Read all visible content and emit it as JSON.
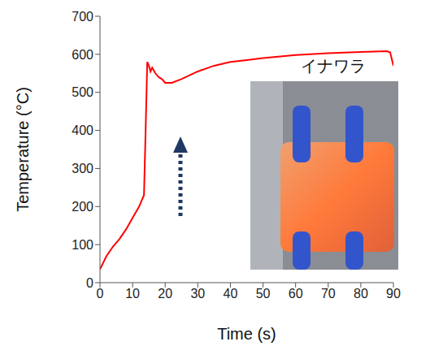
{
  "chart_data": {
    "type": "line",
    "xlabel": "Time (s)",
    "ylabel": "Temperature (°C)",
    "annotation": "イナワラ",
    "x": [
      0,
      2,
      4,
      6,
      8,
      10,
      12,
      13.5,
      14,
      14.5,
      15,
      15.5,
      16,
      17,
      18,
      19,
      20,
      22,
      25,
      30,
      35,
      40,
      45,
      50,
      60,
      70,
      80,
      88,
      89,
      90
    ],
    "values": [
      35,
      70,
      95,
      115,
      140,
      170,
      200,
      230,
      400,
      580,
      570,
      555,
      565,
      550,
      540,
      535,
      525,
      525,
      535,
      555,
      570,
      580,
      585,
      590,
      598,
      603,
      606,
      608,
      605,
      570
    ],
    "color": "#ff0000",
    "xlim": [
      0,
      90
    ],
    "ylim": [
      0,
      700
    ],
    "xticks": [
      0,
      10,
      20,
      30,
      40,
      50,
      60,
      70,
      80,
      90
    ],
    "yticks": [
      0,
      100,
      200,
      300,
      400,
      500,
      600,
      700
    ],
    "grid": false
  }
}
